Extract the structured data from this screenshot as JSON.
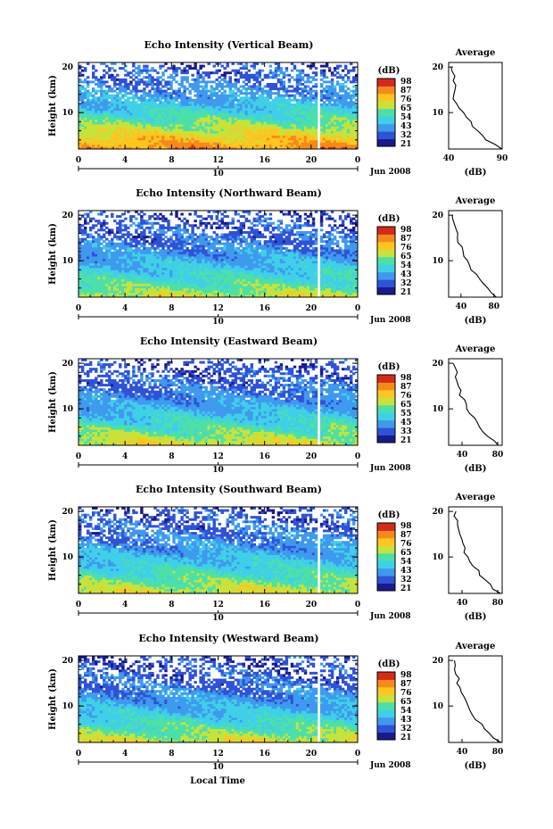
{
  "figure": {
    "x_axis_label": "Local Time",
    "date_label": "Jun 2008"
  },
  "chart_data": [
    {
      "type": "heatmap",
      "title": "Echo Intensity (Vertical Beam)",
      "ylabel": "Height (km)",
      "yticks": [
        "10",
        "20"
      ],
      "ylim": [
        2,
        21
      ],
      "xlim": [
        0,
        24
      ],
      "xticks": [
        "0",
        "4",
        "8",
        "12",
        "16",
        "20",
        "0"
      ],
      "date_tick": "10",
      "colorbar": {
        "unit": "(dB)",
        "levels": [
          21,
          32,
          43,
          54,
          65,
          76,
          87,
          98
        ],
        "labels": [
          "98",
          "87",
          "76",
          "65",
          "54",
          "43",
          "32",
          "21"
        ],
        "colors": [
          "#1a1a8c",
          "#2f53d6",
          "#3f9aee",
          "#3fd0e8",
          "#4ce0a8",
          "#c8e23a",
          "#ffc51f",
          "#f58a1c",
          "#d42a1c"
        ]
      },
      "data_gap_time": 20.7,
      "mean_level_by_height": [
        [
          2,
          92
        ],
        [
          4,
          82
        ],
        [
          6,
          72
        ],
        [
          8,
          62
        ],
        [
          10,
          52
        ],
        [
          12,
          44
        ],
        [
          14,
          38
        ],
        [
          16,
          34
        ],
        [
          18,
          30
        ],
        [
          20,
          27
        ]
      ],
      "average_profile": {
        "title": "Average",
        "xlabel": "(dB)",
        "xlim": [
          40,
          90
        ],
        "xticks": [
          "40",
          "90"
        ],
        "yticks": [
          "10",
          "20"
        ],
        "heights": [
          2,
          3,
          4,
          5,
          6,
          7,
          8,
          9,
          10,
          11,
          12,
          13,
          14,
          15,
          16,
          17,
          18,
          19,
          20
        ],
        "values": [
          88,
          82,
          76,
          72,
          68,
          64,
          60,
          56,
          53,
          50,
          47,
          45,
          43,
          44,
          45,
          43,
          44,
          42,
          43
        ]
      }
    },
    {
      "type": "heatmap",
      "title": "Echo Intensity (Northward Beam)",
      "ylabel": "Height (km)",
      "yticks": [
        "10",
        "20"
      ],
      "ylim": [
        2,
        21
      ],
      "xlim": [
        0,
        24
      ],
      "xticks": [
        "0",
        "4",
        "8",
        "12",
        "16",
        "20",
        "0"
      ],
      "date_tick": "10",
      "colorbar": {
        "unit": "(dB)",
        "levels": [
          21,
          32,
          43,
          54,
          65,
          76,
          87,
          98
        ],
        "labels": [
          "98",
          "87",
          "76",
          "65",
          "54",
          "43",
          "32",
          "21"
        ],
        "colors": [
          "#1a1a8c",
          "#2f53d6",
          "#3f9aee",
          "#3fd0e8",
          "#4ce0a8",
          "#c8e23a",
          "#ffc51f",
          "#f58a1c",
          "#d42a1c"
        ]
      },
      "data_gap_time": 20.7,
      "mean_level_by_height": [
        [
          2,
          72
        ],
        [
          4,
          62
        ],
        [
          6,
          55
        ],
        [
          8,
          48
        ],
        [
          10,
          42
        ],
        [
          12,
          36
        ],
        [
          14,
          32
        ],
        [
          16,
          29
        ],
        [
          18,
          26
        ],
        [
          20,
          24
        ]
      ],
      "average_profile": {
        "title": "Average",
        "xlabel": "(dB)",
        "xlim": [
          25,
          90
        ],
        "xticks": [
          "40",
          "80"
        ],
        "yticks": [
          "10",
          "20"
        ],
        "heights": [
          2,
          3,
          4,
          5,
          6,
          7,
          8,
          9,
          10,
          11,
          12,
          13,
          14,
          15,
          16,
          17,
          18,
          19,
          20
        ],
        "values": [
          84,
          78,
          72,
          66,
          62,
          58,
          54,
          50,
          47,
          44,
          42,
          40,
          38,
          36,
          35,
          34,
          33,
          32,
          31
        ]
      }
    },
    {
      "type": "heatmap",
      "title": "Echo Intensity (Eastward Beam)",
      "ylabel": "Height (km)",
      "yticks": [
        "10",
        "20"
      ],
      "ylim": [
        2,
        21
      ],
      "xlim": [
        0,
        24
      ],
      "xticks": [
        "0",
        "4",
        "8",
        "12",
        "16",
        "20",
        "0"
      ],
      "date_tick": "10",
      "colorbar": {
        "unit": "(dB)",
        "levels": [
          21,
          33,
          45,
          55,
          65,
          76,
          87,
          98
        ],
        "labels": [
          "98",
          "87",
          "76",
          "65",
          "55",
          "45",
          "33",
          "21"
        ],
        "colors": [
          "#1a1a8c",
          "#2f53d6",
          "#3f9aee",
          "#3fd0e8",
          "#4ce0a8",
          "#c8e23a",
          "#ffc51f",
          "#f58a1c",
          "#d42a1c"
        ]
      },
      "data_gap_time": 20.7,
      "mean_level_by_height": [
        [
          2,
          75
        ],
        [
          4,
          66
        ],
        [
          6,
          58
        ],
        [
          8,
          50
        ],
        [
          10,
          44
        ],
        [
          12,
          38
        ],
        [
          14,
          33
        ],
        [
          16,
          30
        ],
        [
          18,
          27
        ],
        [
          20,
          24
        ]
      ],
      "average_profile": {
        "title": "Average",
        "xlabel": "(dB)",
        "xlim": [
          25,
          85
        ],
        "xticks": [
          "40",
          "80"
        ],
        "yticks": [
          "10",
          "20"
        ],
        "heights": [
          2,
          3,
          4,
          5,
          6,
          7,
          8,
          9,
          10,
          11,
          12,
          13,
          14,
          15,
          16,
          17,
          18,
          19,
          20
        ],
        "values": [
          82,
          76,
          70,
          65,
          61,
          57,
          53,
          49,
          46,
          43,
          41,
          39,
          37,
          36,
          35,
          34,
          33,
          32,
          31
        ]
      }
    },
    {
      "type": "heatmap",
      "title": "Echo Intensity (Southward Beam)",
      "ylabel": "Height (km)",
      "yticks": [
        "10",
        "20"
      ],
      "ylim": [
        2,
        21
      ],
      "xlim": [
        0,
        24
      ],
      "xticks": [
        "0",
        "4",
        "8",
        "12",
        "16",
        "20",
        "0"
      ],
      "date_tick": "10",
      "colorbar": {
        "unit": "(dB)",
        "levels": [
          21,
          32,
          43,
          54,
          65,
          76,
          87,
          98
        ],
        "labels": [
          "98",
          "87",
          "76",
          "65",
          "54",
          "43",
          "32",
          "21"
        ],
        "colors": [
          "#1a1a8c",
          "#2f53d6",
          "#3f9aee",
          "#3fd0e8",
          "#4ce0a8",
          "#c8e23a",
          "#ffc51f",
          "#f58a1c",
          "#d42a1c"
        ]
      },
      "data_gap_time": 20.7,
      "mean_level_by_height": [
        [
          2,
          74
        ],
        [
          4,
          65
        ],
        [
          6,
          57
        ],
        [
          8,
          50
        ],
        [
          10,
          44
        ],
        [
          12,
          38
        ],
        [
          14,
          34
        ],
        [
          16,
          31
        ],
        [
          18,
          28
        ],
        [
          20,
          25
        ]
      ],
      "average_profile": {
        "title": "Average",
        "xlabel": "(dB)",
        "xlim": [
          25,
          85
        ],
        "xticks": [
          "40",
          "80"
        ],
        "yticks": [
          "10",
          "20"
        ],
        "heights": [
          2,
          3,
          4,
          5,
          6,
          7,
          8,
          9,
          10,
          11,
          12,
          13,
          14,
          15,
          16,
          17,
          18,
          19,
          20
        ],
        "values": [
          82,
          76,
          70,
          65,
          61,
          57,
          53,
          49,
          46,
          44,
          42,
          40,
          38,
          37,
          36,
          35,
          34,
          33,
          32
        ]
      }
    },
    {
      "type": "heatmap",
      "title": "Echo Intensity (Westward Beam)",
      "ylabel": "Height (km)",
      "yticks": [
        "10",
        "20"
      ],
      "ylim": [
        2,
        21
      ],
      "xlim": [
        0,
        24
      ],
      "xticks": [
        "0",
        "4",
        "8",
        "12",
        "16",
        "20",
        "0"
      ],
      "date_tick": "10",
      "colorbar": {
        "unit": "(dB)",
        "levels": [
          21,
          32,
          43,
          54,
          65,
          76,
          87,
          98
        ],
        "labels": [
          "98",
          "87",
          "76",
          "65",
          "54",
          "43",
          "32",
          "21"
        ],
        "colors": [
          "#1a1a8c",
          "#2f53d6",
          "#3f9aee",
          "#3fd0e8",
          "#4ce0a8",
          "#c8e23a",
          "#ffc51f",
          "#f58a1c",
          "#d42a1c"
        ]
      },
      "data_gap_time": 20.7,
      "mean_level_by_height": [
        [
          2,
          74
        ],
        [
          4,
          64
        ],
        [
          6,
          56
        ],
        [
          8,
          48
        ],
        [
          10,
          42
        ],
        [
          12,
          36
        ],
        [
          14,
          32
        ],
        [
          16,
          29
        ],
        [
          18,
          26
        ],
        [
          20,
          24
        ]
      ],
      "average_profile": {
        "title": "Average",
        "xlabel": "(dB)",
        "xlim": [
          25,
          85
        ],
        "xticks": [
          "40",
          "80"
        ],
        "yticks": [
          "10",
          "20"
        ],
        "heights": [
          2,
          3,
          4,
          5,
          6,
          7,
          8,
          9,
          10,
          11,
          12,
          13,
          14,
          15,
          16,
          17,
          18,
          19,
          20
        ],
        "values": [
          82,
          76,
          70,
          65,
          61,
          57,
          53,
          49,
          46,
          43,
          41,
          39,
          37,
          36,
          35,
          34,
          33,
          32,
          31
        ]
      }
    }
  ]
}
